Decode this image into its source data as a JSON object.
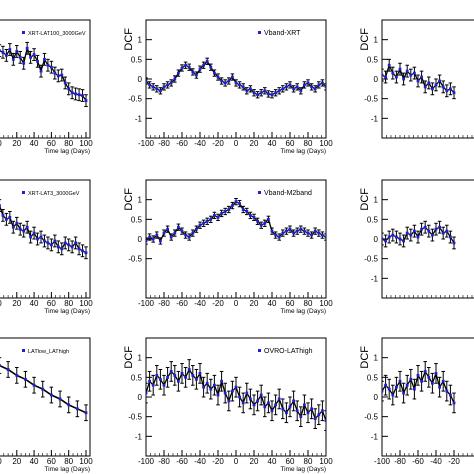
{
  "colors": {
    "marker": "#1f1fd6",
    "line": "#000000",
    "frame": "#000000"
  },
  "chart_data": [
    {
      "type": "scatter",
      "panel": "top-left",
      "legend": "XRT-LAT100_3000GeV",
      "xlabel": "Time lag (Days)",
      "ylabel": "",
      "xlim": [
        -100,
        100
      ],
      "ylim": [
        -1.5,
        1.5
      ],
      "xticks": [
        0,
        20,
        40,
        60,
        80,
        100
      ],
      "yticks": [],
      "x": [
        -4,
        0,
        4,
        8,
        12,
        16,
        20,
        24,
        28,
        32,
        36,
        40,
        44,
        48,
        52,
        56,
        60,
        64,
        68,
        72,
        76,
        80,
        84,
        88,
        92,
        96,
        100
      ],
      "y": [
        0.62,
        0.72,
        0.68,
        0.6,
        0.75,
        0.5,
        0.7,
        0.55,
        0.4,
        0.78,
        0.55,
        0.62,
        0.45,
        0.2,
        0.5,
        0.35,
        0.3,
        0.15,
        0.08,
        0.1,
        -0.1,
        -0.25,
        -0.35,
        -0.38,
        -0.4,
        -0.42,
        -0.55
      ],
      "err": 0.15
    },
    {
      "type": "scatter",
      "panel": "top-middle",
      "legend": "Vband-XRT",
      "xlabel": "Time lag (Days)",
      "ylabel": "DCF",
      "xlim": [
        -100,
        100
      ],
      "ylim": [
        -1.5,
        1.5
      ],
      "xticks": [
        -100,
        -80,
        -60,
        -40,
        -20,
        0,
        20,
        40,
        60,
        80,
        100
      ],
      "yticks": [
        -1,
        -0.5,
        0,
        0.5,
        1
      ],
      "x": [
        -100,
        -96,
        -92,
        -88,
        -84,
        -80,
        -76,
        -72,
        -68,
        -64,
        -60,
        -56,
        -52,
        -48,
        -44,
        -40,
        -36,
        -32,
        -28,
        -24,
        -20,
        -16,
        -12,
        -8,
        -4,
        0,
        4,
        8,
        12,
        16,
        20,
        24,
        28,
        32,
        36,
        40,
        44,
        48,
        52,
        56,
        60,
        64,
        68,
        72,
        76,
        80,
        84,
        88,
        92,
        96,
        100
      ],
      "y": [
        -0.05,
        -0.15,
        -0.2,
        -0.25,
        -0.3,
        -0.2,
        -0.15,
        -0.1,
        0.0,
        0.15,
        0.28,
        0.35,
        0.3,
        0.18,
        0.1,
        0.25,
        0.35,
        0.45,
        0.3,
        0.15,
        0.05,
        -0.05,
        -0.1,
        -0.05,
        0.05,
        -0.1,
        -0.15,
        -0.2,
        -0.3,
        -0.25,
        -0.35,
        -0.4,
        -0.35,
        -0.3,
        -0.38,
        -0.4,
        -0.35,
        -0.3,
        -0.25,
        -0.2,
        -0.15,
        -0.25,
        -0.2,
        -0.3,
        -0.15,
        -0.1,
        -0.2,
        -0.25,
        -0.15,
        -0.1,
        -0.2
      ],
      "err": 0.08
    },
    {
      "type": "scatter",
      "panel": "top-right",
      "legend": "",
      "xlabel": "",
      "ylabel": "DCF",
      "xlim": [
        -100,
        100
      ],
      "ylim": [
        -1.5,
        1.5
      ],
      "xticks": [],
      "yticks": [
        -1,
        -0.5,
        0,
        0.5,
        1
      ],
      "x": [
        -100,
        -96,
        -92,
        -88,
        -84,
        -80,
        -76,
        -72,
        -68,
        -64,
        -60,
        -56,
        -52,
        -48,
        -44,
        -40,
        -36,
        -32,
        -28,
        -24,
        -20
      ],
      "y": [
        0.1,
        0.05,
        0.35,
        0.15,
        0.05,
        0.25,
        0.0,
        0.2,
        0.1,
        0.15,
        -0.05,
        0.05,
        -0.2,
        -0.1,
        -0.25,
        -0.15,
        -0.05,
        -0.2,
        -0.3,
        -0.25,
        -0.35
      ],
      "err": 0.15
    },
    {
      "type": "scatter",
      "panel": "middle-left",
      "legend": "XRT-LAT3_3000GeV",
      "xlabel": "Time lag (Days)",
      "ylabel": "",
      "xlim": [
        -100,
        100
      ],
      "ylim": [
        -1.5,
        1.5
      ],
      "xticks": [
        0,
        20,
        40,
        60,
        80,
        100
      ],
      "yticks": [],
      "x": [
        -4,
        0,
        4,
        8,
        12,
        16,
        20,
        24,
        28,
        32,
        36,
        40,
        44,
        48,
        52,
        56,
        60,
        64,
        68,
        72,
        76,
        80,
        84,
        88,
        92,
        96,
        100
      ],
      "y": [
        0.7,
        0.85,
        0.6,
        0.5,
        0.55,
        0.3,
        0.4,
        0.25,
        0.2,
        0.3,
        0.05,
        0.15,
        0.0,
        0.05,
        -0.05,
        -0.1,
        -0.15,
        -0.05,
        -0.2,
        -0.25,
        -0.1,
        -0.15,
        -0.2,
        -0.1,
        -0.25,
        -0.3,
        -0.35
      ],
      "err": 0.15
    },
    {
      "type": "scatter",
      "panel": "middle-middle",
      "legend": "Vband-M2band",
      "xlabel": "Time lag (Days)",
      "ylabel": "DCF",
      "xlim": [
        -100,
        100
      ],
      "ylim": [
        -1.5,
        1.5
      ],
      "xticks": [
        -100,
        -80,
        -60,
        -40,
        -20,
        0,
        20,
        40,
        60,
        80,
        100
      ],
      "yticks": [
        -0.5,
        0,
        0.5,
        1
      ],
      "x": [
        -100,
        -96,
        -92,
        -88,
        -84,
        -80,
        -76,
        -72,
        -68,
        -64,
        -60,
        -56,
        -52,
        -48,
        -44,
        -40,
        -36,
        -32,
        -28,
        -24,
        -20,
        -16,
        -12,
        -8,
        -4,
        0,
        4,
        8,
        12,
        16,
        20,
        24,
        28,
        32,
        36,
        40,
        44,
        48,
        52,
        56,
        60,
        64,
        68,
        72,
        76,
        80,
        84,
        88,
        92,
        96,
        100
      ],
      "y": [
        -0.05,
        0.05,
        0.0,
        0.1,
        -0.05,
        0.15,
        0.25,
        0.05,
        0.15,
        0.3,
        0.2,
        0.1,
        0.05,
        0.15,
        0.25,
        0.35,
        0.4,
        0.45,
        0.5,
        0.6,
        0.55,
        0.65,
        0.7,
        0.75,
        0.85,
        0.95,
        0.9,
        0.75,
        0.7,
        0.6,
        0.55,
        0.45,
        0.35,
        0.4,
        0.5,
        0.2,
        0.1,
        0.05,
        0.15,
        0.2,
        0.25,
        0.15,
        0.2,
        0.25,
        0.2,
        0.15,
        0.1,
        0.2,
        0.15,
        0.1,
        0.05
      ],
      "err": 0.08
    },
    {
      "type": "scatter",
      "panel": "middle-right",
      "legend": "",
      "xlabel": "",
      "ylabel": "DCF",
      "xlim": [
        -100,
        100
      ],
      "ylim": [
        -1.5,
        1.5
      ],
      "xticks": [],
      "yticks": [
        -1,
        -0.5,
        0,
        0.5,
        1
      ],
      "x": [
        -100,
        -96,
        -92,
        -88,
        -84,
        -80,
        -76,
        -72,
        -68,
        -64,
        -60,
        -56,
        -52,
        -48,
        -44,
        -40,
        -36,
        -32,
        -28,
        -24,
        -20
      ],
      "y": [
        0.0,
        -0.05,
        0.05,
        0.1,
        0.05,
        0.0,
        -0.05,
        0.15,
        0.1,
        0.2,
        0.05,
        0.25,
        0.3,
        0.2,
        0.1,
        0.25,
        0.3,
        0.15,
        0.2,
        0.05,
        -0.1
      ],
      "err": 0.15
    },
    {
      "type": "line",
      "panel": "bottom-left",
      "legend": "LATlow_LAThigh",
      "xlabel": "Time lag (Days)",
      "ylabel": "",
      "xlim": [
        -100,
        100
      ],
      "ylim": [
        -1.5,
        1.5
      ],
      "xticks": [
        0,
        20,
        40,
        60,
        80,
        100
      ],
      "yticks": [],
      "x": [
        0,
        10,
        20,
        30,
        40,
        50,
        60,
        70,
        80,
        90,
        100
      ],
      "y": [
        0.8,
        0.7,
        0.55,
        0.45,
        0.3,
        0.2,
        0.05,
        -0.05,
        -0.2,
        -0.3,
        -0.4
      ],
      "err": 0.2
    },
    {
      "type": "scatter",
      "panel": "bottom-middle",
      "legend": "OVRO-LAThigh",
      "xlabel": "Time lag (Days)",
      "ylabel": "DCF",
      "xlim": [
        -100,
        100
      ],
      "ylim": [
        -1.5,
        1.5
      ],
      "xticks": [
        -100,
        -80,
        -60,
        -40,
        -20,
        0,
        20,
        40,
        60,
        80,
        100
      ],
      "yticks": [
        -1,
        -0.5,
        0,
        0.5,
        1
      ],
      "x": [
        -100,
        -96,
        -92,
        -88,
        -84,
        -80,
        -76,
        -72,
        -68,
        -64,
        -60,
        -56,
        -52,
        -48,
        -44,
        -40,
        -36,
        -32,
        -28,
        -24,
        -20,
        -16,
        -12,
        -8,
        -4,
        0,
        4,
        8,
        12,
        16,
        20,
        24,
        28,
        32,
        36,
        40,
        44,
        48,
        52,
        56,
        60,
        64,
        68,
        72,
        76,
        80,
        84,
        88,
        92,
        96,
        100
      ],
      "y": [
        0.1,
        0.4,
        0.3,
        0.55,
        0.45,
        0.3,
        0.5,
        0.65,
        0.55,
        0.4,
        0.6,
        0.5,
        0.7,
        0.55,
        0.45,
        0.6,
        0.25,
        0.35,
        0.2,
        0.3,
        0.05,
        0.4,
        0.1,
        -0.1,
        0.15,
        0.25,
        0.0,
        -0.15,
        0.1,
        -0.05,
        -0.2,
        -0.1,
        0.05,
        -0.25,
        -0.15,
        -0.35,
        -0.2,
        -0.05,
        -0.3,
        -0.4,
        -0.25,
        -0.1,
        -0.35,
        -0.5,
        -0.2,
        -0.4,
        -0.3,
        -0.55,
        -0.45,
        -0.35,
        -0.6
      ],
      "err": 0.25
    },
    {
      "type": "scatter",
      "panel": "bottom-right",
      "legend": "",
      "xlabel": "",
      "ylabel": "DCF",
      "xlim": [
        -100,
        100
      ],
      "ylim": [
        -1.5,
        1.5
      ],
      "xticks": [
        -100,
        -80,
        -60,
        -40,
        -20
      ],
      "yticks": [
        -1,
        -0.5,
        0,
        0.5,
        1
      ],
      "x": [
        -100,
        -96,
        -92,
        -88,
        -84,
        -80,
        -76,
        -72,
        -68,
        -64,
        -60,
        -56,
        -52,
        -48,
        -44,
        -40,
        -36,
        -32,
        -28,
        -24,
        -20
      ],
      "y": [
        0.15,
        0.3,
        0.2,
        0.05,
        0.25,
        0.4,
        0.1,
        0.3,
        0.45,
        0.2,
        0.55,
        0.4,
        0.65,
        0.5,
        0.35,
        0.6,
        0.25,
        0.4,
        0.15,
        0.05,
        -0.15
      ],
      "err": 0.25
    }
  ]
}
